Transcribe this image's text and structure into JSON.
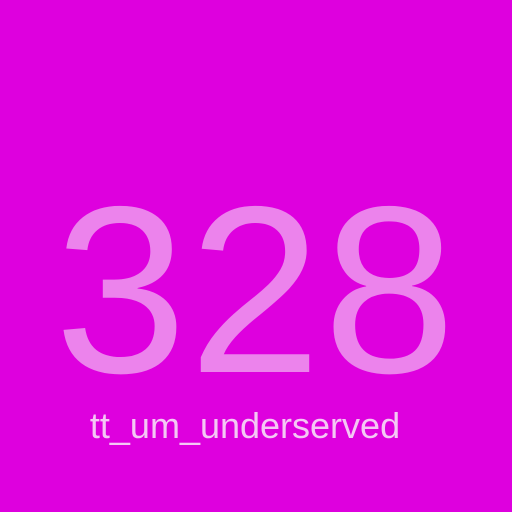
{
  "tile": {
    "value": "328",
    "label": "tt_um_underserved",
    "colors": {
      "background": "#de00de",
      "value_text": "#ec83ec",
      "label_text": "#f4c8f4"
    }
  }
}
